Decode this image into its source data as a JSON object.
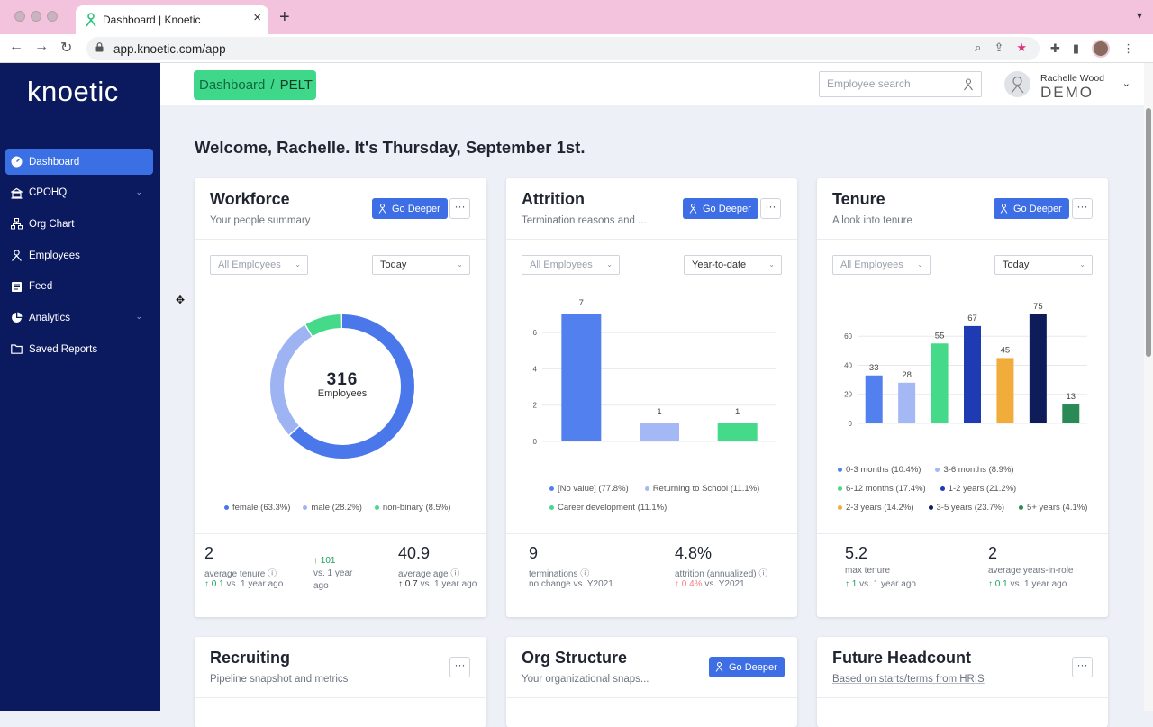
{
  "browser": {
    "tab_title": "Dashboard | Knoetic",
    "url": "app.knoetic.com/app"
  },
  "sidebar": {
    "logo": "knoetic",
    "items": [
      {
        "label": "Dashboard",
        "icon": "dashboard-icon"
      },
      {
        "label": "CPOHQ",
        "icon": "building-icon"
      },
      {
        "label": "Org Chart",
        "icon": "org-chart-icon"
      },
      {
        "label": "Employees",
        "icon": "people-icon"
      },
      {
        "label": "Feed",
        "icon": "feed-icon"
      },
      {
        "label": "Analytics",
        "icon": "pie-icon"
      },
      {
        "label": "Saved Reports",
        "icon": "folder-icon"
      }
    ]
  },
  "header": {
    "breadcrumb_root": "Dashboard",
    "breadcrumb_sep": "/",
    "breadcrumb_current": "PELT",
    "search_placeholder": "Employee search",
    "user_name": "Rachelle Wood",
    "user_role": "DEMO"
  },
  "welcome": "Welcome, Rachelle. It's Thursday, September 1st.",
  "common": {
    "go_deeper": "Go Deeper",
    "more": "···",
    "all_employees": "All Employees"
  },
  "workforce": {
    "title": "Workforce",
    "subtitle": "Your people summary",
    "period": "Today",
    "total": "316",
    "total_label": "Employees",
    "legend": [
      "female (63.3%)",
      "male (28.2%)",
      "non-binary (8.5%)"
    ],
    "stat1_value": "2",
    "stat1_label": "average tenure",
    "stat1_change": "0.1",
    "stat1_vs": "vs. 1 year ago",
    "stat2_change": "101",
    "stat2_vs": "vs. 1 year ago",
    "stat3_value": "40.9",
    "stat3_label": "average age",
    "stat3_change": "0.7",
    "stat3_vs": "vs. 1 year ago"
  },
  "attrition": {
    "title": "Attrition",
    "subtitle": "Termination reasons and ...",
    "period": "Year-to-date",
    "legend": [
      "[No value] (77.8%)",
      "Returning to School (11.1%)",
      "Career development (11.1%)"
    ],
    "stat1_value": "9",
    "stat1_label": "terminations",
    "stat1_vs": "no change vs. Y2021",
    "stat2_value": "4.8%",
    "stat2_label": "attrition (annualized)",
    "stat2_change": "0.4%",
    "stat2_vs": "vs. Y2021"
  },
  "tenure": {
    "title": "Tenure",
    "subtitle": "A look into tenure",
    "period": "Today",
    "legend": [
      "0-3 months (10.4%)",
      "3-6 months (8.9%)",
      "6-12 months (17.4%)",
      "1-2 years (21.2%)",
      "2-3 years (14.2%)",
      "3-5 years (23.7%)",
      "5+ years (4.1%)"
    ],
    "stat1_value": "5.2",
    "stat1_label": "max tenure",
    "stat1_change": "1",
    "stat1_vs": "vs. 1 year ago",
    "stat2_value": "2",
    "stat2_label": "average years-in-role",
    "stat2_change": "0.1",
    "stat2_vs": "vs. 1 year ago"
  },
  "recruiting": {
    "title": "Recruiting",
    "subtitle": "Pipeline snapshot and metrics"
  },
  "org_structure": {
    "title": "Org Structure",
    "subtitle": "Your organizational snaps..."
  },
  "future_headcount": {
    "title": "Future Headcount",
    "subtitle": "Based on starts/terms from HRIS"
  },
  "colors": {
    "sidebar_bg": "#0b1a5e",
    "accent_blue": "#3d6ee6",
    "breadcrumb_green": "#3fd88b",
    "female": "#4a78ea",
    "male": "#9db3f2",
    "non_binary": "#45d98a"
  },
  "chart_data": [
    {
      "type": "pie",
      "title": "Workforce",
      "categories": [
        "female",
        "male",
        "non-binary"
      ],
      "values": [
        63.3,
        28.2,
        8.5
      ],
      "colors": [
        "#4a78ea",
        "#9db3f2",
        "#45d98a"
      ]
    },
    {
      "type": "bar",
      "title": "Attrition",
      "categories": [
        "[No value]",
        "Returning to School",
        "Career development"
      ],
      "values": [
        7,
        1,
        1
      ],
      "colors": [
        "#5280ee",
        "#a3b8f4",
        "#45d98a"
      ],
      "ylim": [
        0,
        7
      ],
      "yticks": [
        "0",
        "2",
        "4",
        "6"
      ],
      "grid": true
    },
    {
      "type": "bar",
      "title": "Tenure",
      "categories": [
        "0-3 months",
        "3-6 months",
        "6-12 months",
        "1-2 years",
        "2-3 years",
        "3-5 years",
        "5+ years"
      ],
      "values": [
        33,
        28,
        55,
        67,
        45,
        75,
        13
      ],
      "colors": [
        "#5280ee",
        "#a3b8f4",
        "#45d98a",
        "#1e3bb3",
        "#f2ac3b",
        "#0e1d5a",
        "#2a8a55"
      ],
      "ylim": [
        0,
        75
      ],
      "yticks": [
        "0",
        "20",
        "40",
        "60"
      ],
      "grid": true
    }
  ]
}
